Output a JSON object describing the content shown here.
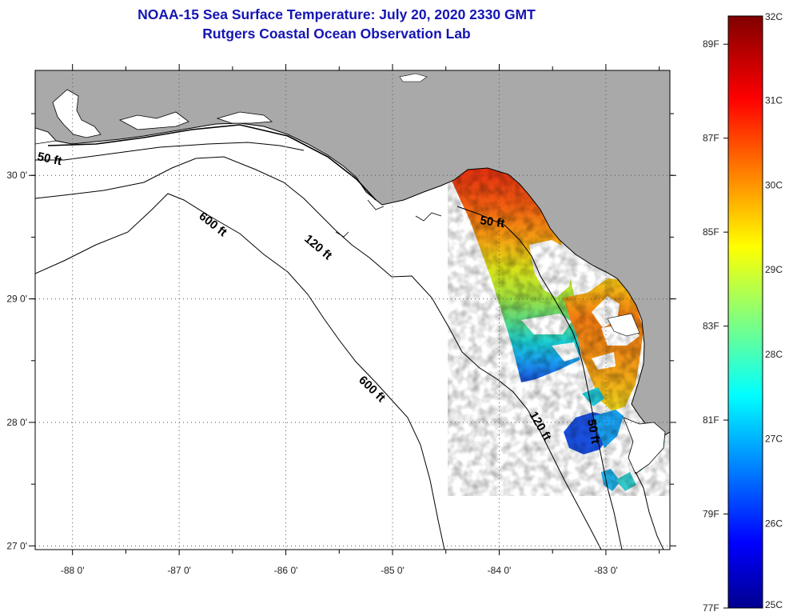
{
  "header": {
    "title": "NOAA-15 Sea Surface Temperature:  July 20, 2020 2330 GMT",
    "subtitle": "Rutgers Coastal Ocean Observation Lab"
  },
  "map": {
    "lon_range": [
      -88.35,
      -82.4
    ],
    "lat_range": [
      26.97,
      30.85
    ],
    "lon_ticks": [
      {
        "value": -88,
        "label": "-88 0'"
      },
      {
        "value": -87,
        "label": "-87 0'"
      },
      {
        "value": -86,
        "label": "-86 0'"
      },
      {
        "value": -85,
        "label": "-85 0'"
      },
      {
        "value": -84,
        "label": "-84 0'"
      },
      {
        "value": -83,
        "label": "-83 0'"
      }
    ],
    "lat_ticks": [
      {
        "value": 30,
        "label": "30 0'"
      },
      {
        "value": 29,
        "label": "29 0'"
      },
      {
        "value": 28,
        "label": "28 0'"
      },
      {
        "value": 27,
        "label": "27 0'"
      }
    ],
    "contour_labels": {
      "west_50": "50 ft",
      "east_50": "50 ft",
      "south_50": "50 ft",
      "north_120": "120 ft",
      "south_120": "120 ft",
      "north_600": "600 ft",
      "south_600": "600 ft"
    },
    "colors": {
      "land": "#a9a9a9",
      "ocean": "#ffffff",
      "grid": "#555555"
    }
  },
  "colorbar": {
    "min_c": 25,
    "max_c": 32,
    "celsius_labels": [
      {
        "value": 32,
        "label": "32C"
      },
      {
        "value": 31,
        "label": "31C"
      },
      {
        "value": 30,
        "label": "30C"
      },
      {
        "value": 29,
        "label": "29C"
      },
      {
        "value": 28,
        "label": "28C"
      },
      {
        "value": 27,
        "label": "27C"
      },
      {
        "value": 26,
        "label": "26C"
      },
      {
        "value": 25,
        "label": "25C"
      }
    ],
    "fahrenheit_labels": [
      {
        "value": 89,
        "label": "89F"
      },
      {
        "value": 87,
        "label": "87F"
      },
      {
        "value": 85,
        "label": "85F"
      },
      {
        "value": 83,
        "label": "83F"
      },
      {
        "value": 81,
        "label": "81F"
      },
      {
        "value": 79,
        "label": "79F"
      },
      {
        "value": 77,
        "label": "77F"
      }
    ]
  }
}
